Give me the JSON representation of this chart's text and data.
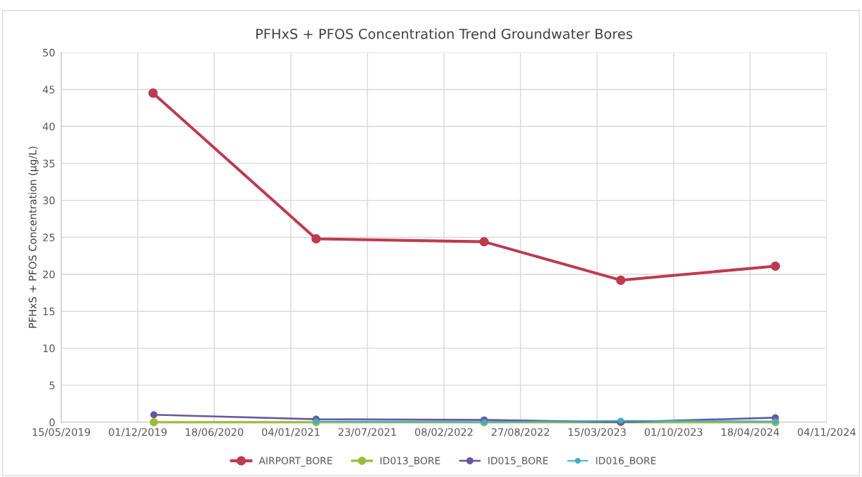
{
  "chart_data": {
    "type": "line",
    "title": "PFHxS + PFOS Concentration Trend Groundwater Bores",
    "ylabel": "PFHxS + PFOS Concentration (µg/L)",
    "xlim": [
      "2019-05-15",
      "2024-11-04"
    ],
    "xticks": [
      {
        "value": "2019-05-15",
        "label": "15/05/2019"
      },
      {
        "value": "2019-12-01",
        "label": "01/12/2019"
      },
      {
        "value": "2020-06-18",
        "label": "18/06/2020"
      },
      {
        "value": "2021-01-04",
        "label": "04/01/2021"
      },
      {
        "value": "2021-07-23",
        "label": "23/07/2021"
      },
      {
        "value": "2022-02-08",
        "label": "08/02/2022"
      },
      {
        "value": "2022-08-27",
        "label": "27/08/2022"
      },
      {
        "value": "2023-03-15",
        "label": "15/03/2023"
      },
      {
        "value": "2023-10-01",
        "label": "01/10/2023"
      },
      {
        "value": "2024-04-18",
        "label": "18/04/2024"
      },
      {
        "value": "2024-11-04",
        "label": "04/11/2024"
      }
    ],
    "ylim": [
      0,
      50
    ],
    "yticks": [
      0,
      5,
      10,
      15,
      20,
      25,
      30,
      35,
      40,
      45,
      50
    ],
    "grid": true,
    "legend": "bottom",
    "marker": "circle",
    "line_style": "solid",
    "series": [
      {
        "name": "AIRPORT_BORE",
        "color": "#be3a50",
        "x": [
          "2020-01-10",
          "2021-03-11",
          "2022-05-24",
          "2023-05-16",
          "2024-06-23"
        ],
        "values": [
          44.5,
          24.8,
          24.4,
          19.2,
          21.1
        ]
      },
      {
        "name": "ID013_BORE",
        "color": "#9bbb3f",
        "x": [
          "2020-01-12",
          "2021-03-11",
          "2022-05-24",
          "2023-05-16",
          "2024-06-23"
        ],
        "values": [
          0,
          0,
          0,
          0,
          0
        ]
      },
      {
        "name": "ID015_BORE",
        "color": "#6a56a0",
        "x": [
          "2020-01-12",
          "2021-03-11",
          "2022-05-24",
          "2023-05-16",
          "2024-06-23"
        ],
        "values": [
          1.0,
          0.4,
          0.3,
          0.0,
          0.6
        ]
      },
      {
        "name": "ID016_BORE",
        "color": "#3fb0c6",
        "x": [
          "2021-03-11",
          "2022-05-24",
          "2023-05-16",
          "2024-06-23"
        ],
        "values": [
          0.1,
          0.0,
          0.2,
          0.1
        ]
      }
    ]
  }
}
